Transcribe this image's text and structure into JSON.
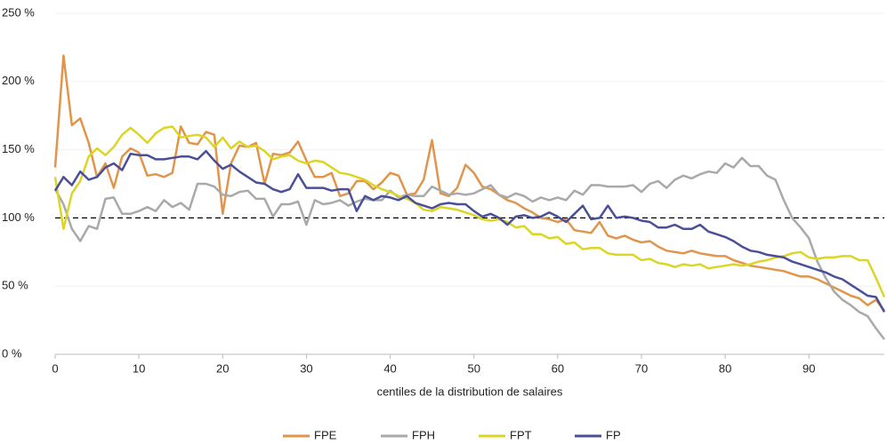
{
  "chart_data": {
    "type": "line",
    "x_label": "centiles de la distribution de salaires",
    "x": [
      0,
      1,
      2,
      3,
      4,
      5,
      6,
      7,
      8,
      9,
      10,
      11,
      12,
      13,
      14,
      15,
      16,
      17,
      18,
      19,
      20,
      21,
      22,
      23,
      24,
      25,
      26,
      27,
      28,
      29,
      30,
      31,
      32,
      33,
      34,
      35,
      36,
      37,
      38,
      39,
      40,
      41,
      42,
      43,
      44,
      45,
      46,
      47,
      48,
      49,
      50,
      51,
      52,
      53,
      54,
      55,
      56,
      57,
      58,
      59,
      60,
      61,
      62,
      63,
      64,
      65,
      66,
      67,
      68,
      69,
      70,
      71,
      72,
      73,
      74,
      75,
      76,
      77,
      78,
      79,
      80,
      81,
      82,
      83,
      84,
      85,
      86,
      87,
      88,
      89,
      90,
      91,
      92,
      93,
      94,
      95,
      96,
      97,
      98,
      99
    ],
    "xlim": [
      0,
      99
    ],
    "xticks": [
      0,
      10,
      20,
      30,
      40,
      50,
      60,
      70,
      80,
      90
    ],
    "ylim": [
      0,
      250
    ],
    "yticks": [
      {
        "value": 0,
        "label": "0 %"
      },
      {
        "value": 50,
        "label": "50 %"
      },
      {
        "value": 100,
        "label": "100 %"
      },
      {
        "value": 150,
        "label": "150 %"
      },
      {
        "value": 200,
        "label": "200 %"
      },
      {
        "value": 250,
        "label": "250 %"
      }
    ],
    "reference_line": 100,
    "legend": "bottom",
    "series": [
      {
        "name": "FPE",
        "color": "#e0954b",
        "values": [
          137,
          219,
          168,
          173,
          155,
          130,
          140,
          122,
          145,
          151,
          148,
          131,
          132,
          130,
          133,
          167,
          155,
          154,
          163,
          161,
          103,
          140,
          153,
          152,
          155,
          125,
          147,
          146,
          148,
          156,
          142,
          130,
          130,
          133,
          116,
          118,
          127,
          127,
          121,
          126,
          133,
          131,
          117,
          118,
          128,
          157,
          118,
          116,
          122,
          139,
          133,
          123,
          121,
          117,
          113,
          111,
          107,
          104,
          100,
          99,
          97,
          99,
          91,
          90,
          89,
          97,
          87,
          85,
          87,
          84,
          82,
          83,
          79,
          76,
          75,
          74,
          76,
          74,
          73,
          72,
          72,
          69,
          67,
          65,
          64,
          63,
          62,
          61,
          59,
          57,
          57,
          55,
          52,
          49,
          46,
          43,
          41,
          36,
          40,
          32
        ]
      },
      {
        "name": "FPH",
        "color": "#a9a9a9",
        "values": [
          121,
          110,
          92,
          83,
          94,
          92,
          114,
          115,
          103,
          103,
          105,
          108,
          105,
          113,
          108,
          111,
          106,
          125,
          125,
          123,
          117,
          116,
          119,
          120,
          114,
          114,
          101,
          110,
          110,
          112,
          95,
          113,
          110,
          111,
          113,
          109,
          112,
          114,
          113,
          113,
          120,
          115,
          117,
          116,
          116,
          123,
          120,
          117,
          118,
          117,
          118,
          121,
          124,
          117,
          115,
          118,
          116,
          112,
          115,
          113,
          115,
          113,
          120,
          117,
          124,
          124,
          123,
          123,
          123,
          124,
          119,
          125,
          127,
          122,
          128,
          131,
          129,
          132,
          134,
          133,
          140,
          137,
          144,
          138,
          138,
          131,
          128,
          113,
          100,
          93,
          85,
          68,
          56,
          46,
          40,
          36,
          31,
          28,
          19,
          11
        ]
      },
      {
        "name": "FPT",
        "color": "#dbd525",
        "values": [
          130,
          92,
          118,
          127,
          145,
          151,
          146,
          152,
          161,
          166,
          161,
          155,
          162,
          166,
          167,
          159,
          160,
          161,
          159,
          152,
          159,
          151,
          156,
          152,
          153,
          149,
          143,
          145,
          146,
          142,
          140,
          142,
          141,
          137,
          133,
          132,
          130,
          128,
          124,
          121,
          119,
          116,
          114,
          111,
          106,
          105,
          108,
          107,
          106,
          104,
          102,
          99,
          98,
          99,
          97,
          93,
          94,
          88,
          88,
          85,
          86,
          81,
          82,
          77,
          78,
          78,
          74,
          73,
          73,
          73,
          69,
          70,
          67,
          66,
          64,
          66,
          65,
          66,
          63,
          64,
          65,
          66,
          65,
          66,
          68,
          69,
          71,
          72,
          74,
          75,
          71,
          70,
          71,
          71,
          72,
          72,
          69,
          69,
          56,
          42
        ]
      },
      {
        "name": "FP",
        "color": "#4b4f98",
        "values": [
          120,
          130,
          124,
          134,
          128,
          130,
          137,
          140,
          135,
          147,
          146,
          146,
          143,
          143,
          144,
          145,
          145,
          143,
          149,
          142,
          136,
          139,
          134,
          130,
          126,
          125,
          121,
          119,
          121,
          132,
          122,
          122,
          122,
          120,
          121,
          121,
          105,
          116,
          113,
          116,
          115,
          113,
          116,
          111,
          109,
          107,
          110,
          111,
          110,
          110,
          105,
          101,
          103,
          100,
          95,
          101,
          102,
          100,
          101,
          104,
          101,
          97,
          103,
          109,
          99,
          100,
          109,
          100,
          101,
          100,
          98,
          97,
          93,
          93,
          95,
          92,
          92,
          95,
          90,
          88,
          86,
          83,
          79,
          76,
          75,
          73,
          72,
          71,
          68,
          66,
          64,
          62,
          60,
          57,
          55,
          51,
          47,
          43,
          42,
          31
        ]
      }
    ]
  }
}
